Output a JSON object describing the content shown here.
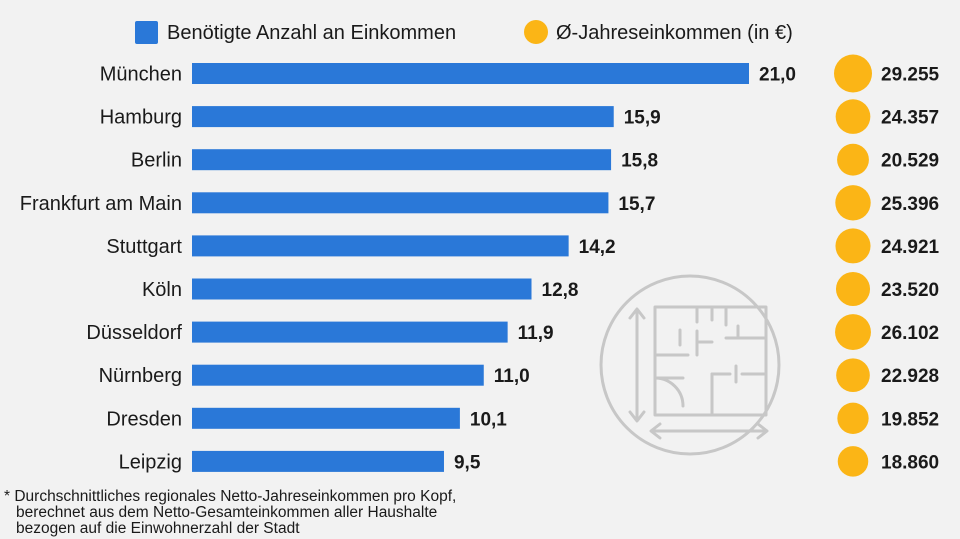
{
  "legend": {
    "bar_label": "Benötigte Anzahl an Einkommen",
    "circle_label": "Ø-Jahreseinkommen (in €)"
  },
  "footnote": {
    "line1": "* Durchschnittliches regionales Netto-Jahreseinkommen pro Kopf,",
    "line2": "berechnet aus dem Netto-Gesamteinkommen aller Haushalte",
    "line3": "bezogen auf die Einwohnerzahl der Stadt"
  },
  "colors": {
    "bar": "#2a78d8",
    "circle": "#fbb516",
    "icon": "#c7c7c7",
    "background": "#f2f2f2"
  },
  "icon": "floor-plan-icon",
  "chart_data": {
    "type": "bar",
    "orientation": "horizontal",
    "categories": [
      "München",
      "Hamburg",
      "Berlin",
      "Frankfurt am Main",
      "Stuttgart",
      "Köln",
      "Düsseldorf",
      "Nürnberg",
      "Dresden",
      "Leipzig"
    ],
    "series": [
      {
        "name": "Benötigte Anzahl an Einkommen",
        "values": [
          21.0,
          15.9,
          15.8,
          15.7,
          14.2,
          12.8,
          11.9,
          11.0,
          10.1,
          9.5
        ],
        "labels": [
          "21,0",
          "15,9",
          "15,8",
          "15,7",
          "14,2",
          "12,8",
          "11,9",
          "11,0",
          "10,1",
          "9,5"
        ]
      },
      {
        "name": "Ø-Jahreseinkommen (in €)",
        "values": [
          29255,
          24357,
          20529,
          25396,
          24921,
          23520,
          26102,
          22928,
          19852,
          18860
        ],
        "labels": [
          "29.255",
          "24.357",
          "20.529",
          "25.396",
          "24.921",
          "23.520",
          "26.102",
          "22.928",
          "19.852",
          "18.860"
        ]
      }
    ],
    "xlim": [
      0,
      21
    ],
    "legend_position": "top"
  }
}
